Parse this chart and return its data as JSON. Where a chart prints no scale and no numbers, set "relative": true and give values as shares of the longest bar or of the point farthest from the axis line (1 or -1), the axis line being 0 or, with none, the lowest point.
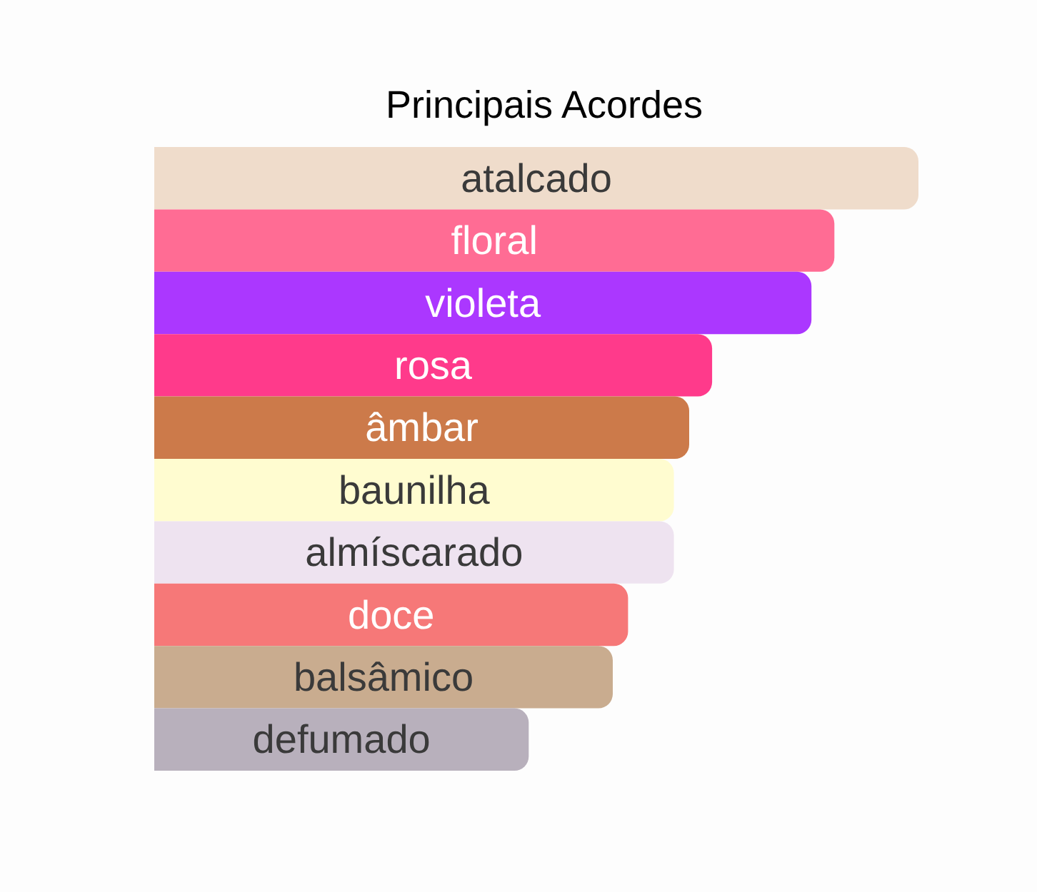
{
  "chart_data": {
    "type": "bar",
    "orientation": "horizontal",
    "relative": true,
    "title": "Principais Acordes",
    "categories": [
      "atalcado",
      "floral",
      "violeta",
      "rosa",
      "âmbar",
      "baunilha",
      "almíscarado",
      "doce",
      "balsâmico",
      "defumado"
    ],
    "values": [
      1,
      0.89,
      0.86,
      0.73,
      0.7,
      0.68,
      0.68,
      0.62,
      0.6,
      0.49
    ],
    "colors": [
      "#efdccb",
      "#ff6c94",
      "#ab37ff",
      "#ff3a8b",
      "#cc7a4a",
      "#fffcd0",
      "#eee3f0",
      "#f67878",
      "#c9ac8f",
      "#b8b0bc"
    ]
  }
}
